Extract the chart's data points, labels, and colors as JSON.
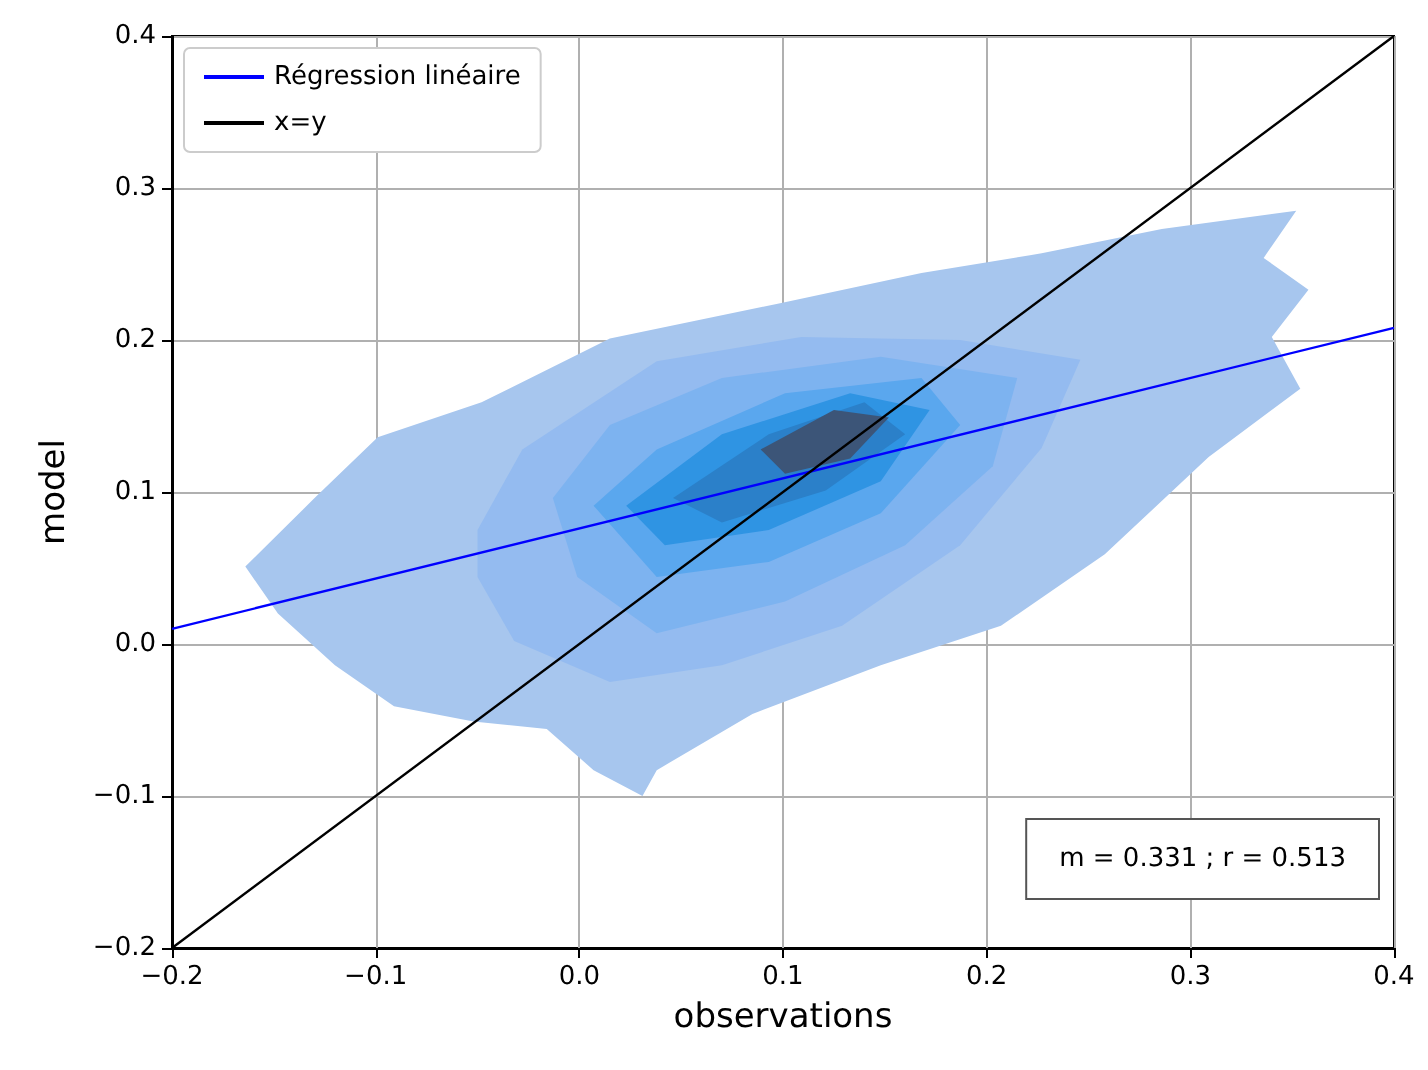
{
  "chart_data": {
    "type": "line",
    "xlabel": "observations",
    "ylabel": "model",
    "xlim": [
      -0.2,
      0.4
    ],
    "ylim": [
      -0.2,
      0.4
    ],
    "xticks": [
      {
        "value": -0.2,
        "label": "−0.2"
      },
      {
        "value": -0.1,
        "label": "−0.1"
      },
      {
        "value": 0,
        "label": "0.0"
      },
      {
        "value": 0.1,
        "label": "0.1"
      },
      {
        "value": 0.2,
        "label": "0.2"
      },
      {
        "value": 0.3,
        "label": "0.3"
      },
      {
        "value": 0.4,
        "label": "0.4"
      }
    ],
    "yticks": [
      {
        "value": -0.2,
        "label": "−0.2"
      },
      {
        "value": -0.1,
        "label": "−0.1"
      },
      {
        "value": 0,
        "label": "0.0"
      },
      {
        "value": 0.1,
        "label": "0.1"
      },
      {
        "value": 0.2,
        "label": "0.2"
      },
      {
        "value": 0.3,
        "label": "0.3"
      },
      {
        "value": 0.4,
        "label": "0.4"
      }
    ],
    "grid": true,
    "legend": "top left",
    "marker": "none",
    "line_style": "solid",
    "annotations": [
      "m = 0.331 ; r = 0.513"
    ],
    "series": [
      {
        "type": "area",
        "color": "#a7c6ee",
        "x": [
          -0.164,
          -0.13,
          -0.099,
          -0.048,
          0.015,
          0.098,
          0.168,
          0.227,
          0.286,
          0.352,
          0.336,
          0.358,
          0.34,
          0.354,
          0.309,
          0.258,
          0.207,
          0.148,
          0.085,
          0.038,
          0.031,
          0.007,
          -0.016,
          -0.052,
          -0.091,
          -0.12,
          -0.148
        ],
        "values": [
          0.051,
          0.096,
          0.136,
          0.159,
          0.201,
          0.224,
          0.244,
          0.257,
          0.273,
          0.285,
          0.254,
          0.233,
          0.202,
          0.168,
          0.123,
          0.059,
          0.012,
          -0.014,
          -0.046,
          -0.083,
          -0.1,
          -0.083,
          -0.056,
          -0.051,
          -0.041,
          -0.014,
          0.02
        ]
      },
      {
        "type": "area",
        "color": "#94bbf0",
        "x": [
          -0.05,
          -0.028,
          0.038,
          0.109,
          0.187,
          0.246,
          0.227,
          0.187,
          0.129,
          0.07,
          0.015,
          -0.032,
          -0.05
        ],
        "values": [
          0.075,
          0.128,
          0.186,
          0.202,
          0.2,
          0.187,
          0.129,
          0.065,
          0.012,
          -0.014,
          -0.025,
          0.002,
          0.044
        ]
      },
      {
        "type": "area",
        "color": "#7db3f0",
        "x": [
          -0.013,
          0.015,
          0.07,
          0.148,
          0.215,
          0.203,
          0.16,
          0.101,
          0.038,
          -0.001
        ],
        "values": [
          0.096,
          0.144,
          0.175,
          0.189,
          0.175,
          0.117,
          0.065,
          0.028,
          0.007,
          0.044
        ]
      },
      {
        "type": "area",
        "color": "#5aa7ee",
        "x": [
          0.007,
          0.038,
          0.101,
          0.168,
          0.187,
          0.148,
          0.093,
          0.038
        ],
        "values": [
          0.091,
          0.128,
          0.165,
          0.175,
          0.144,
          0.086,
          0.054,
          0.044
        ]
      },
      {
        "type": "area",
        "color": "#2f94e3",
        "x": [
          0.023,
          0.07,
          0.133,
          0.172,
          0.148,
          0.093,
          0.042
        ],
        "values": [
          0.091,
          0.138,
          0.165,
          0.154,
          0.107,
          0.075,
          0.065
        ]
      },
      {
        "type": "area",
        "color": "#2b80c9",
        "x": [
          0.046,
          0.093,
          0.14,
          0.16,
          0.121,
          0.07
        ],
        "values": [
          0.096,
          0.138,
          0.159,
          0.138,
          0.101,
          0.08
        ]
      },
      {
        "type": "area",
        "color": "#3c5578",
        "x": [
          0.089,
          0.125,
          0.152,
          0.133,
          0.101
        ],
        "values": [
          0.128,
          0.154,
          0.149,
          0.122,
          0.112
        ]
      },
      {
        "name": "Régression linéaire",
        "color": "#0000ff",
        "x": [
          -0.2,
          0.4
        ],
        "values": [
          0.01,
          0.208
        ]
      },
      {
        "name": "x=y",
        "color": "#000000",
        "x": [
          -0.2,
          0.4
        ],
        "values": [
          -0.2,
          0.4
        ]
      }
    ]
  }
}
